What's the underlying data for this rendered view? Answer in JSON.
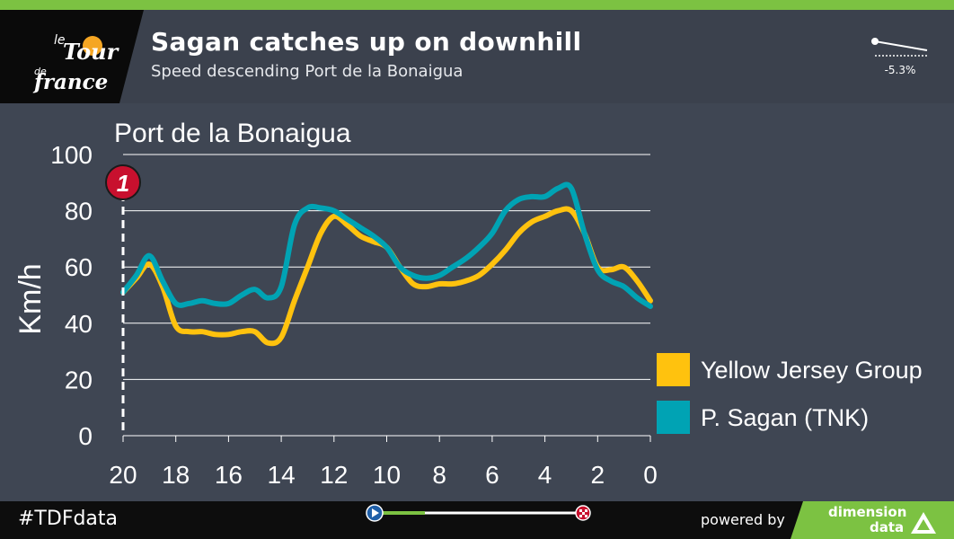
{
  "header": {
    "title": "Sagan catches up on downhill",
    "subtitle": "Speed descending Port de la Bonaigua",
    "gradient": "-5.3%"
  },
  "footer": {
    "hashtag": "#TDFdata",
    "powered_by": "powered by",
    "brand_line1": "dimension",
    "brand_line2": "data"
  },
  "logo": {
    "text": "le Tour de France"
  },
  "colors": {
    "yellow": "#ffc20e",
    "teal": "#00a3b4",
    "accent_green": "#7cc242",
    "marker_red": "#c8102e"
  },
  "chart_data": {
    "type": "line",
    "title": "Port de la Bonaigua",
    "ylabel": "Km/h",
    "xlabel": "",
    "xlim": [
      20,
      0
    ],
    "ylim": [
      0,
      100
    ],
    "x_ticks": [
      20,
      18,
      16,
      14,
      12,
      10,
      8,
      6,
      4,
      2,
      0
    ],
    "y_ticks": [
      0,
      20,
      40,
      60,
      80,
      100
    ],
    "grid": true,
    "legend_position": "bottom-right",
    "marker": {
      "label": "1",
      "x": 20
    },
    "series": [
      {
        "name": "Yellow Jersey Group",
        "color": "#ffc20e",
        "x": [
          20,
          19.5,
          19,
          18.5,
          18,
          17.5,
          17,
          16.5,
          16,
          15.5,
          15,
          14.5,
          14,
          13.5,
          13,
          12.5,
          12,
          11.5,
          11,
          10.5,
          10,
          9.5,
          9,
          8.5,
          8,
          7.5,
          7,
          6.5,
          6,
          5.5,
          5,
          4.5,
          4,
          3.5,
          3,
          2.5,
          2,
          1.5,
          1,
          0.5,
          0
        ],
        "values": [
          51,
          56,
          61,
          53,
          39,
          37,
          37,
          36,
          36,
          37,
          37,
          33,
          35,
          48,
          60,
          72,
          78,
          75,
          71,
          69,
          67,
          60,
          54,
          53,
          54,
          54,
          55,
          57,
          61,
          66,
          72,
          76,
          78,
          80,
          80,
          72,
          60,
          59,
          60,
          55,
          48
        ]
      },
      {
        "name": "P. Sagan (TNK)",
        "color": "#00a3b4",
        "x": [
          20,
          19.5,
          19,
          18.5,
          18,
          17.5,
          17,
          16.5,
          16,
          15.5,
          15,
          14.5,
          14,
          13.5,
          13,
          12.5,
          12,
          11.5,
          11,
          10.5,
          10,
          9.5,
          9,
          8.5,
          8,
          7.5,
          7,
          6.5,
          6,
          5.5,
          5,
          4.5,
          4,
          3.5,
          3,
          2.5,
          2,
          1.5,
          1,
          0.5,
          0
        ],
        "values": [
          51,
          57,
          64,
          55,
          47,
          47,
          48,
          47,
          47,
          50,
          52,
          49,
          53,
          75,
          81,
          81,
          80,
          77,
          74,
          71,
          67,
          60,
          57,
          56,
          57,
          60,
          63,
          67,
          72,
          80,
          84,
          85,
          85,
          88,
          88,
          72,
          59,
          55,
          53,
          49,
          46
        ]
      }
    ]
  }
}
